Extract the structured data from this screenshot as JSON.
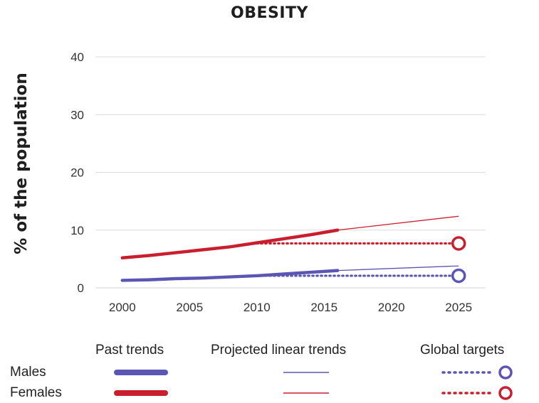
{
  "chart_data": {
    "type": "line",
    "title": "OBESITY",
    "xlabel": "",
    "ylabel": "% of the population",
    "xlim": [
      1998,
      2027
    ],
    "ylim": [
      0,
      40
    ],
    "x_ticks": [
      "2000",
      "2005",
      "2010",
      "2015",
      "2020",
      "2025"
    ],
    "y_ticks": [
      "0",
      "10",
      "20",
      "30",
      "40"
    ],
    "grid": "horizontal",
    "series": [
      {
        "name": "Males",
        "role": "Past trends",
        "color": "#5b56b4",
        "x": [
          2000,
          2002,
          2004,
          2006,
          2008,
          2010,
          2012,
          2014,
          2016
        ],
        "y": [
          1.3,
          1.4,
          1.6,
          1.7,
          1.9,
          2.1,
          2.4,
          2.7,
          3.0
        ]
      },
      {
        "name": "Females",
        "role": "Past trends",
        "color": "#c81e2d",
        "x": [
          2000,
          2002,
          2004,
          2006,
          2008,
          2010,
          2012,
          2014,
          2016
        ],
        "y": [
          5.2,
          5.6,
          6.1,
          6.6,
          7.1,
          7.8,
          8.5,
          9.2,
          10.0
        ]
      },
      {
        "name": "Males",
        "role": "Projected linear trends",
        "color": "#5b56b4",
        "x": [
          2016,
          2025
        ],
        "y": [
          3.0,
          3.8
        ]
      },
      {
        "name": "Females",
        "role": "Projected linear trends",
        "color": "#c81e2d",
        "x": [
          2016,
          2025
        ],
        "y": [
          10.0,
          12.4
        ]
      },
      {
        "name": "Males",
        "role": "Global targets",
        "color": "#5b56b4",
        "x": [
          2010,
          2025
        ],
        "y": [
          2.1,
          2.1
        ]
      },
      {
        "name": "Females",
        "role": "Global targets",
        "color": "#c81e2d",
        "x": [
          2010,
          2025
        ],
        "y": [
          7.7,
          7.7
        ]
      }
    ],
    "legend": {
      "columns": [
        "Past trends",
        "Projected linear trends",
        "Global targets"
      ],
      "rows": [
        "Males",
        "Females"
      ]
    }
  }
}
